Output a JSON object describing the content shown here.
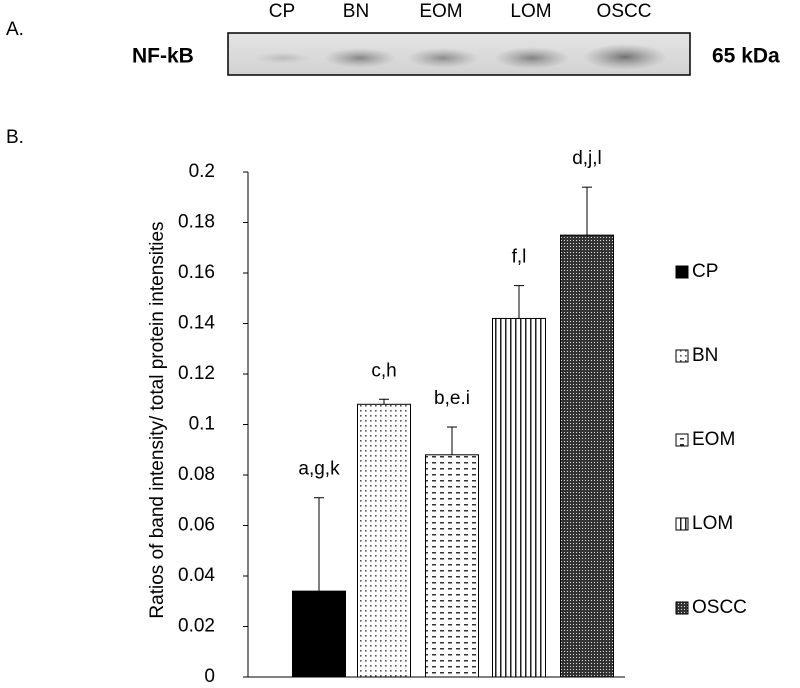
{
  "figure": {
    "panel_a_label": "A.",
    "protein": "NF-kB",
    "size": "65 kDa",
    "lanes": [
      "CP",
      "BN",
      "EOM",
      "LOM",
      "OSCC"
    ],
    "panel_b_label": "B."
  },
  "chart_data": {
    "type": "bar",
    "y_label": "Ratios of  band intensity/ total protein intensities",
    "categories": [
      "CP",
      "BN",
      "EOM",
      "LOM",
      "OSCC"
    ],
    "values": [
      0.034,
      0.108,
      0.088,
      0.142,
      0.175
    ],
    "errors": [
      0.037,
      0.002,
      0.011,
      0.013,
      0.019
    ],
    "annotations": [
      "a,g,k",
      "c,h",
      "b,e.i",
      "f,l",
      "d,j,l"
    ],
    "ylim": [
      0,
      0.2
    ],
    "yticks": [
      0,
      0.02,
      0.04,
      0.06,
      0.08,
      0.1,
      0.12,
      0.14,
      0.16,
      0.18,
      0.2
    ],
    "legend": "right",
    "color": "#000000"
  }
}
